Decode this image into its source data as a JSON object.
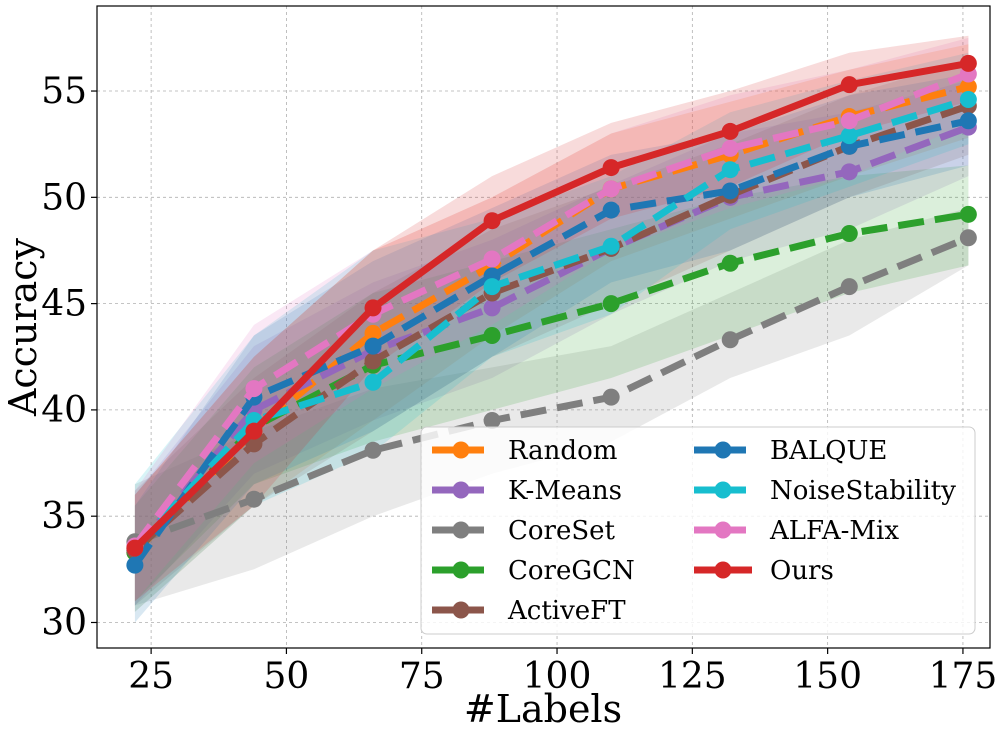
{
  "chart_data": {
    "type": "line",
    "title": "",
    "xlabel": "#Labels",
    "ylabel": "Accuracy",
    "xlim": [
      15,
      180
    ],
    "ylim": [
      28.8,
      59
    ],
    "xticks": [
      25,
      50,
      75,
      100,
      125,
      150,
      175
    ],
    "yticks": [
      30,
      35,
      40,
      45,
      50,
      55
    ],
    "grid": true,
    "legend_position": "lower-right",
    "x": [
      22,
      44,
      66,
      88,
      110,
      132,
      154,
      176
    ],
    "series": [
      {
        "name": "Random",
        "color": "#ff7f0e",
        "style": "dashed",
        "values": [
          33.3,
          39.0,
          43.6,
          46.8,
          50.4,
          52.0,
          53.8,
          55.2
        ],
        "lower": [
          30.5,
          35.5,
          39.5,
          43.5,
          47.0,
          49.0,
          51.0,
          52.8
        ],
        "upper": [
          36.0,
          42.5,
          47.5,
          50.0,
          53.0,
          54.5,
          56.0,
          57.2
        ]
      },
      {
        "name": "K-Means",
        "color": "#9467bd",
        "style": "dashed",
        "values": [
          33.4,
          40.0,
          42.8,
          44.8,
          47.6,
          50.0,
          51.2,
          53.3
        ],
        "lower": [
          30.8,
          37.0,
          39.5,
          41.5,
          44.5,
          47.0,
          48.5,
          51.0
        ],
        "upper": [
          36.0,
          43.0,
          46.0,
          48.0,
          50.6,
          53.0,
          54.0,
          55.5
        ]
      },
      {
        "name": "CoreSet",
        "color": "#7f7f7f",
        "style": "dashed",
        "values": [
          33.8,
          35.8,
          38.1,
          39.5,
          40.6,
          43.3,
          45.8,
          48.1
        ],
        "lower": [
          30.8,
          32.5,
          35.0,
          37.0,
          38.5,
          41.5,
          43.5,
          46.8
        ],
        "upper": [
          36.5,
          39.0,
          41.0,
          42.0,
          43.0,
          45.5,
          48.0,
          49.5
        ]
      },
      {
        "name": "CoreGCN",
        "color": "#2ca02c",
        "style": "dashed",
        "values": [
          33.3,
          39.2,
          42.1,
          43.5,
          45.0,
          46.9,
          48.3,
          49.2
        ],
        "lower": [
          31.0,
          36.5,
          38.5,
          40.0,
          41.5,
          43.5,
          45.5,
          46.8
        ],
        "upper": [
          35.5,
          42.0,
          45.5,
          47.0,
          48.5,
          50.0,
          51.0,
          51.5
        ]
      },
      {
        "name": "ActiveFT",
        "color": "#8c564b",
        "style": "dashed",
        "values": [
          33.4,
          38.4,
          42.3,
          45.5,
          47.6,
          50.1,
          52.4,
          54.3
        ],
        "lower": [
          30.8,
          35.5,
          39.0,
          42.5,
          45.0,
          47.5,
          50.0,
          52.0
        ],
        "upper": [
          36.2,
          41.5,
          45.5,
          48.5,
          50.5,
          52.5,
          54.8,
          56.5
        ]
      },
      {
        "name": "BALQUE",
        "color": "#1f77b4",
        "style": "dashed",
        "values": [
          32.7,
          40.6,
          43.0,
          46.3,
          49.4,
          50.3,
          52.4,
          53.6
        ],
        "lower": [
          30.0,
          36.5,
          39.0,
          42.5,
          46.0,
          47.5,
          50.0,
          51.5
        ],
        "upper": [
          35.5,
          43.5,
          47.0,
          49.5,
          52.0,
          53.0,
          54.8,
          55.8
        ]
      },
      {
        "name": "NoiseStability",
        "color": "#17becf",
        "style": "dashed",
        "values": [
          33.5,
          39.5,
          41.3,
          45.8,
          47.7,
          51.3,
          52.9,
          54.6
        ],
        "lower": [
          30.5,
          35.5,
          38.0,
          42.5,
          44.5,
          48.5,
          50.5,
          52.5
        ],
        "upper": [
          36.5,
          43.5,
          47.5,
          49.0,
          51.0,
          54.0,
          55.5,
          56.8
        ]
      },
      {
        "name": "ALFA-Mix",
        "color": "#e377c2",
        "style": "dashed",
        "values": [
          33.6,
          41.0,
          44.5,
          47.1,
          50.4,
          52.3,
          53.6,
          55.8
        ],
        "lower": [
          31.0,
          37.5,
          41.0,
          44.0,
          47.5,
          49.5,
          51.0,
          53.5
        ],
        "upper": [
          36.2,
          44.0,
          47.5,
          50.0,
          53.0,
          54.8,
          56.0,
          57.5
        ]
      },
      {
        "name": "Ours",
        "color": "#d62728",
        "style": "solid",
        "values": [
          33.5,
          39.0,
          44.8,
          48.9,
          51.4,
          53.1,
          55.3,
          56.3
        ],
        "lower": [
          31.0,
          35.5,
          42.0,
          46.0,
          49.0,
          50.5,
          53.0,
          54.5
        ],
        "upper": [
          36.0,
          42.5,
          47.5,
          51.0,
          53.5,
          55.0,
          56.8,
          57.6
        ]
      }
    ]
  }
}
